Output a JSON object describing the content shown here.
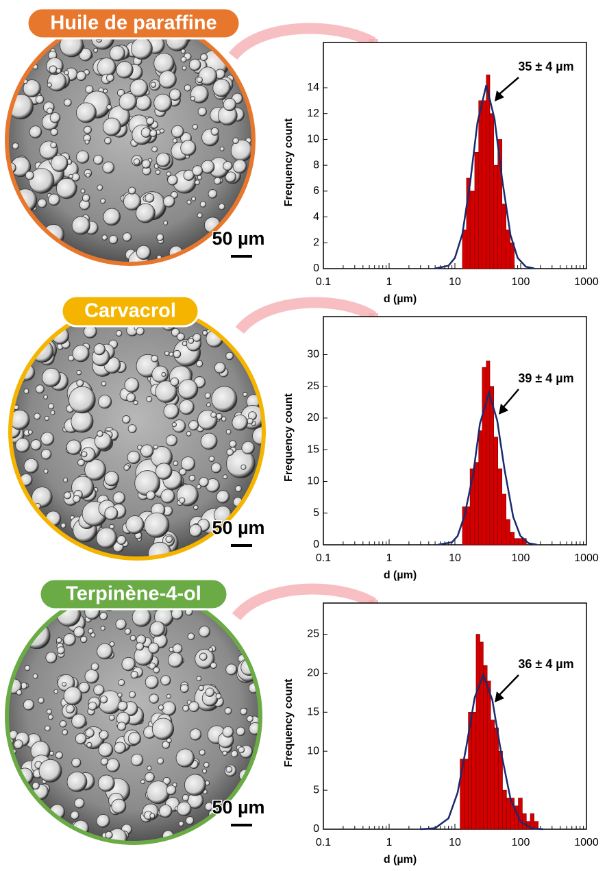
{
  "chart_data": [
    {
      "type": "histogram",
      "sample": "Huile de paraffine",
      "sample_color": "#e8772e",
      "scale_bar": "50 µm",
      "annotation": "35 ± 4 µm",
      "xlabel": "d (µm)",
      "ylabel": "Frequency count",
      "xscale": "log",
      "xlim": [
        0.1,
        1000
      ],
      "xticks": [
        0.1,
        1,
        10,
        100,
        1000
      ],
      "ylim": [
        0,
        17.5
      ],
      "yticks": [
        0,
        2,
        4,
        6,
        8,
        10,
        12,
        14
      ],
      "color": "#d40000",
      "fit_color": "#1a2a6c",
      "bins": [
        13,
        15,
        17,
        20,
        23,
        26,
        30,
        34,
        39,
        45,
        52,
        60,
        69,
        80
      ],
      "values": [
        3,
        7,
        6,
        9,
        13,
        13,
        15,
        12,
        8,
        10,
        5,
        3,
        2
      ],
      "fit_x": [
        5,
        8,
        10,
        13,
        17,
        22,
        30,
        40,
        52,
        70,
        90,
        120,
        160
      ],
      "fit_values": [
        0.01,
        0.23,
        0.83,
        2.7,
        6.6,
        11.3,
        14.2,
        11.6,
        7.0,
        2.6,
        0.83,
        0.15,
        0.02
      ]
    },
    {
      "type": "histogram",
      "sample": "Carvacrol",
      "sample_color": "#f5b400",
      "scale_bar": "50 µm",
      "annotation": "39 ± 4 µm",
      "xlabel": "d (µm)",
      "ylabel": "Frequency count",
      "xscale": "log",
      "xlim": [
        0.1,
        1000
      ],
      "xticks": [
        0.1,
        1,
        10,
        100,
        1000
      ],
      "ylim": [
        0,
        36
      ],
      "yticks": [
        0,
        5,
        10,
        15,
        20,
        25,
        30
      ],
      "color": "#d40000",
      "fit_color": "#1a2a6c",
      "bins": [
        13,
        15,
        17,
        20,
        23,
        26,
        30,
        34,
        39,
        45,
        52,
        60,
        69,
        80,
        92,
        106,
        122
      ],
      "values": [
        6,
        6,
        12,
        13,
        18,
        28,
        29,
        25,
        17,
        12,
        8,
        4,
        2,
        1,
        1,
        1
      ],
      "fit_x": [
        5.5,
        9,
        11,
        14,
        19,
        24,
        33,
        44,
        57,
        77,
        99,
        132,
        176
      ],
      "fit_values": [
        0.02,
        0.4,
        1.4,
        4.6,
        11.2,
        19.1,
        24,
        19.6,
        11.8,
        4.4,
        1.4,
        0.25,
        0.03
      ]
    },
    {
      "type": "histogram",
      "sample": "Terpinène-4-ol",
      "sample_color": "#6aab45",
      "scale_bar": "50 µm",
      "annotation": "36 ± 4 µm",
      "xlabel": "d (µm)",
      "ylabel": "Frequency count",
      "xscale": "log",
      "xlim": [
        0.1,
        1000
      ],
      "xticks": [
        0.1,
        1,
        10,
        100,
        1000
      ],
      "ylim": [
        0,
        29
      ],
      "yticks": [
        0,
        5,
        10,
        15,
        20,
        25
      ],
      "color": "#d40000",
      "fit_color": "#1a2a6c",
      "bins": [
        12,
        14,
        16,
        18,
        21,
        24,
        27,
        31,
        35,
        40,
        46,
        53,
        61,
        70,
        80,
        92,
        106,
        122,
        140,
        160,
        185
      ],
      "values": [
        9,
        9,
        15,
        15,
        25,
        24,
        21,
        19,
        14,
        13,
        10,
        5,
        4,
        4,
        3,
        4,
        2,
        1,
        2,
        1
      ],
      "fit_x": [
        3,
        5,
        8,
        11,
        15,
        20,
        27,
        37,
        50,
        70,
        100,
        150,
        220
      ],
      "fit_values": [
        0,
        0.13,
        1.4,
        4.7,
        10.7,
        16.9,
        19.8,
        16.6,
        10,
        3.9,
        0.93,
        0.1,
        0
      ]
    }
  ]
}
